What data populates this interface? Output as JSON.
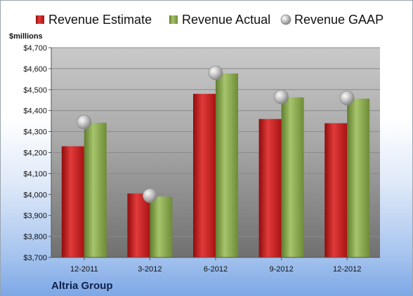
{
  "company": "Altria Group",
  "chart_data": {
    "type": "bar",
    "unit_label": "$millions",
    "categories": [
      "12-2011",
      "3-2012",
      "6-2012",
      "9-2012",
      "12-2012"
    ],
    "series": [
      {
        "name": "Revenue Estimate",
        "type": "bar",
        "color": "#d42020",
        "values": [
          4230,
          4005,
          4480,
          4360,
          4340
        ]
      },
      {
        "name": "Revenue Actual",
        "type": "bar",
        "color": "#8fae50",
        "values": [
          4342,
          3990,
          4577,
          4463,
          4457
        ]
      },
      {
        "name": "Revenue GAAP",
        "type": "marker",
        "color": "#b8b8b8",
        "values": [
          4345,
          3995,
          4580,
          4465,
          4460
        ]
      }
    ],
    "ylim": [
      3700,
      4700
    ],
    "yticks": [
      "$3,700",
      "$3,800",
      "$3,900",
      "$4,000",
      "$4,100",
      "$4,200",
      "$4,300",
      "$4,400",
      "$4,500",
      "$4,600",
      "$4,700"
    ],
    "grid": true,
    "legend": "top"
  }
}
